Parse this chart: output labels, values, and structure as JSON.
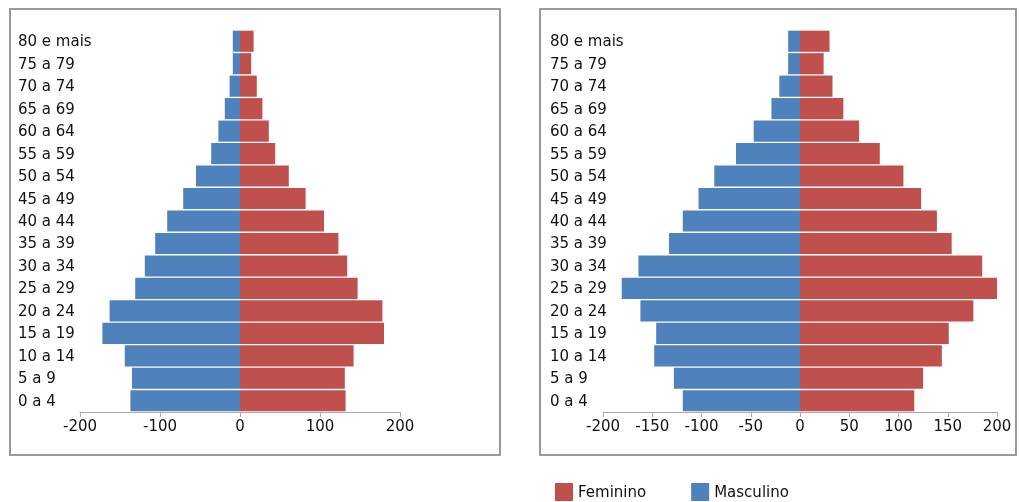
{
  "chart_data": [
    {
      "type": "bar",
      "orientation": "horizontal",
      "categories": [
        "80 e mais",
        "75 a 79",
        "70 a 74",
        "65 a 69",
        "60 a 64",
        "55 a 59",
        "50 a 54",
        "45 a 49",
        "40 a 44",
        "35 a 39",
        "30 a 34",
        "25 a 29",
        "20 a 24",
        "15 a 19",
        "10 a 14",
        "5 a 9",
        "0 a 4"
      ],
      "xlim": [
        -200,
        200
      ],
      "xticks": [
        -200,
        -100,
        0,
        100,
        200
      ],
      "grid": false,
      "legend": false,
      "stacked": true,
      "series": [
        {
          "color": "#c0504d",
          "values": [
            17,
            14,
            21,
            28,
            36,
            44,
            61,
            82,
            105,
            123,
            134,
            147,
            178,
            180,
            142,
            131,
            132
          ]
        },
        {
          "color": "#4f81bd",
          "values": [
            -9,
            -9,
            -13,
            -19,
            -27,
            -36,
            -55,
            -71,
            -91,
            -106,
            -119,
            -131,
            -163,
            -172,
            -144,
            -135,
            -137
          ]
        }
      ]
    },
    {
      "type": "bar",
      "orientation": "horizontal",
      "categories": [
        "80 e mais",
        "75 a 79",
        "70 a 74",
        "65 a 69",
        "60 a 64",
        "55 a 59",
        "50 a 54",
        "45 a 49",
        "40 a 44",
        "35 a 39",
        "30 a 34",
        "25 a 29",
        "20 a 24",
        "15 a 19",
        "10 a 14",
        "5 a 9",
        "0 a 4"
      ],
      "xlim": [
        -200,
        200
      ],
      "xticks": [
        -200,
        -150,
        -100,
        -50,
        0,
        50,
        100,
        150,
        200
      ],
      "grid": false,
      "legend": "bottom",
      "stacked": true,
      "series": [
        {
          "name": "Feminino",
          "color": "#c0504d",
          "values": [
            30,
            24,
            33,
            44,
            60,
            81,
            105,
            123,
            139,
            154,
            185,
            200,
            176,
            151,
            144,
            125,
            116
          ]
        },
        {
          "name": "Masculino",
          "color": "#4f81bd",
          "values": [
            -12,
            -12,
            -21,
            -29,
            -47,
            -65,
            -87,
            -103,
            -119,
            -133,
            -164,
            -181,
            -162,
            -146,
            -148,
            -128,
            -119
          ]
        }
      ]
    }
  ]
}
